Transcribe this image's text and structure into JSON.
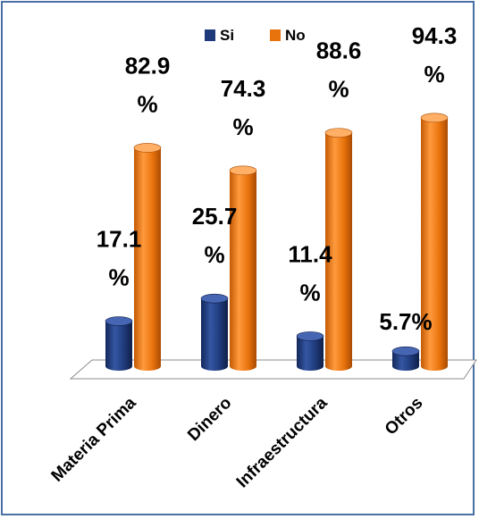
{
  "chart_data": {
    "type": "bar",
    "categories": [
      "Materia Prima",
      "Dinero",
      "Infraestructura",
      "Otros"
    ],
    "series": [
      {
        "name": "Si",
        "color": "#1f3a7a",
        "values": [
          17.1,
          25.7,
          11.4,
          5.7
        ],
        "labels": [
          "17.1 %",
          "25.7 %",
          "11.4 %",
          "5.7%"
        ]
      },
      {
        "name": "No",
        "color": "#e8720c",
        "values": [
          82.9,
          74.3,
          88.6,
          94.3
        ],
        "labels": [
          "82.9 %",
          "74.3 %",
          "88.6 %",
          "94.3 %"
        ]
      }
    ],
    "ylim": [
      0,
      100
    ],
    "grid": false,
    "legend_position": "top",
    "style": "3d-cylinder"
  }
}
